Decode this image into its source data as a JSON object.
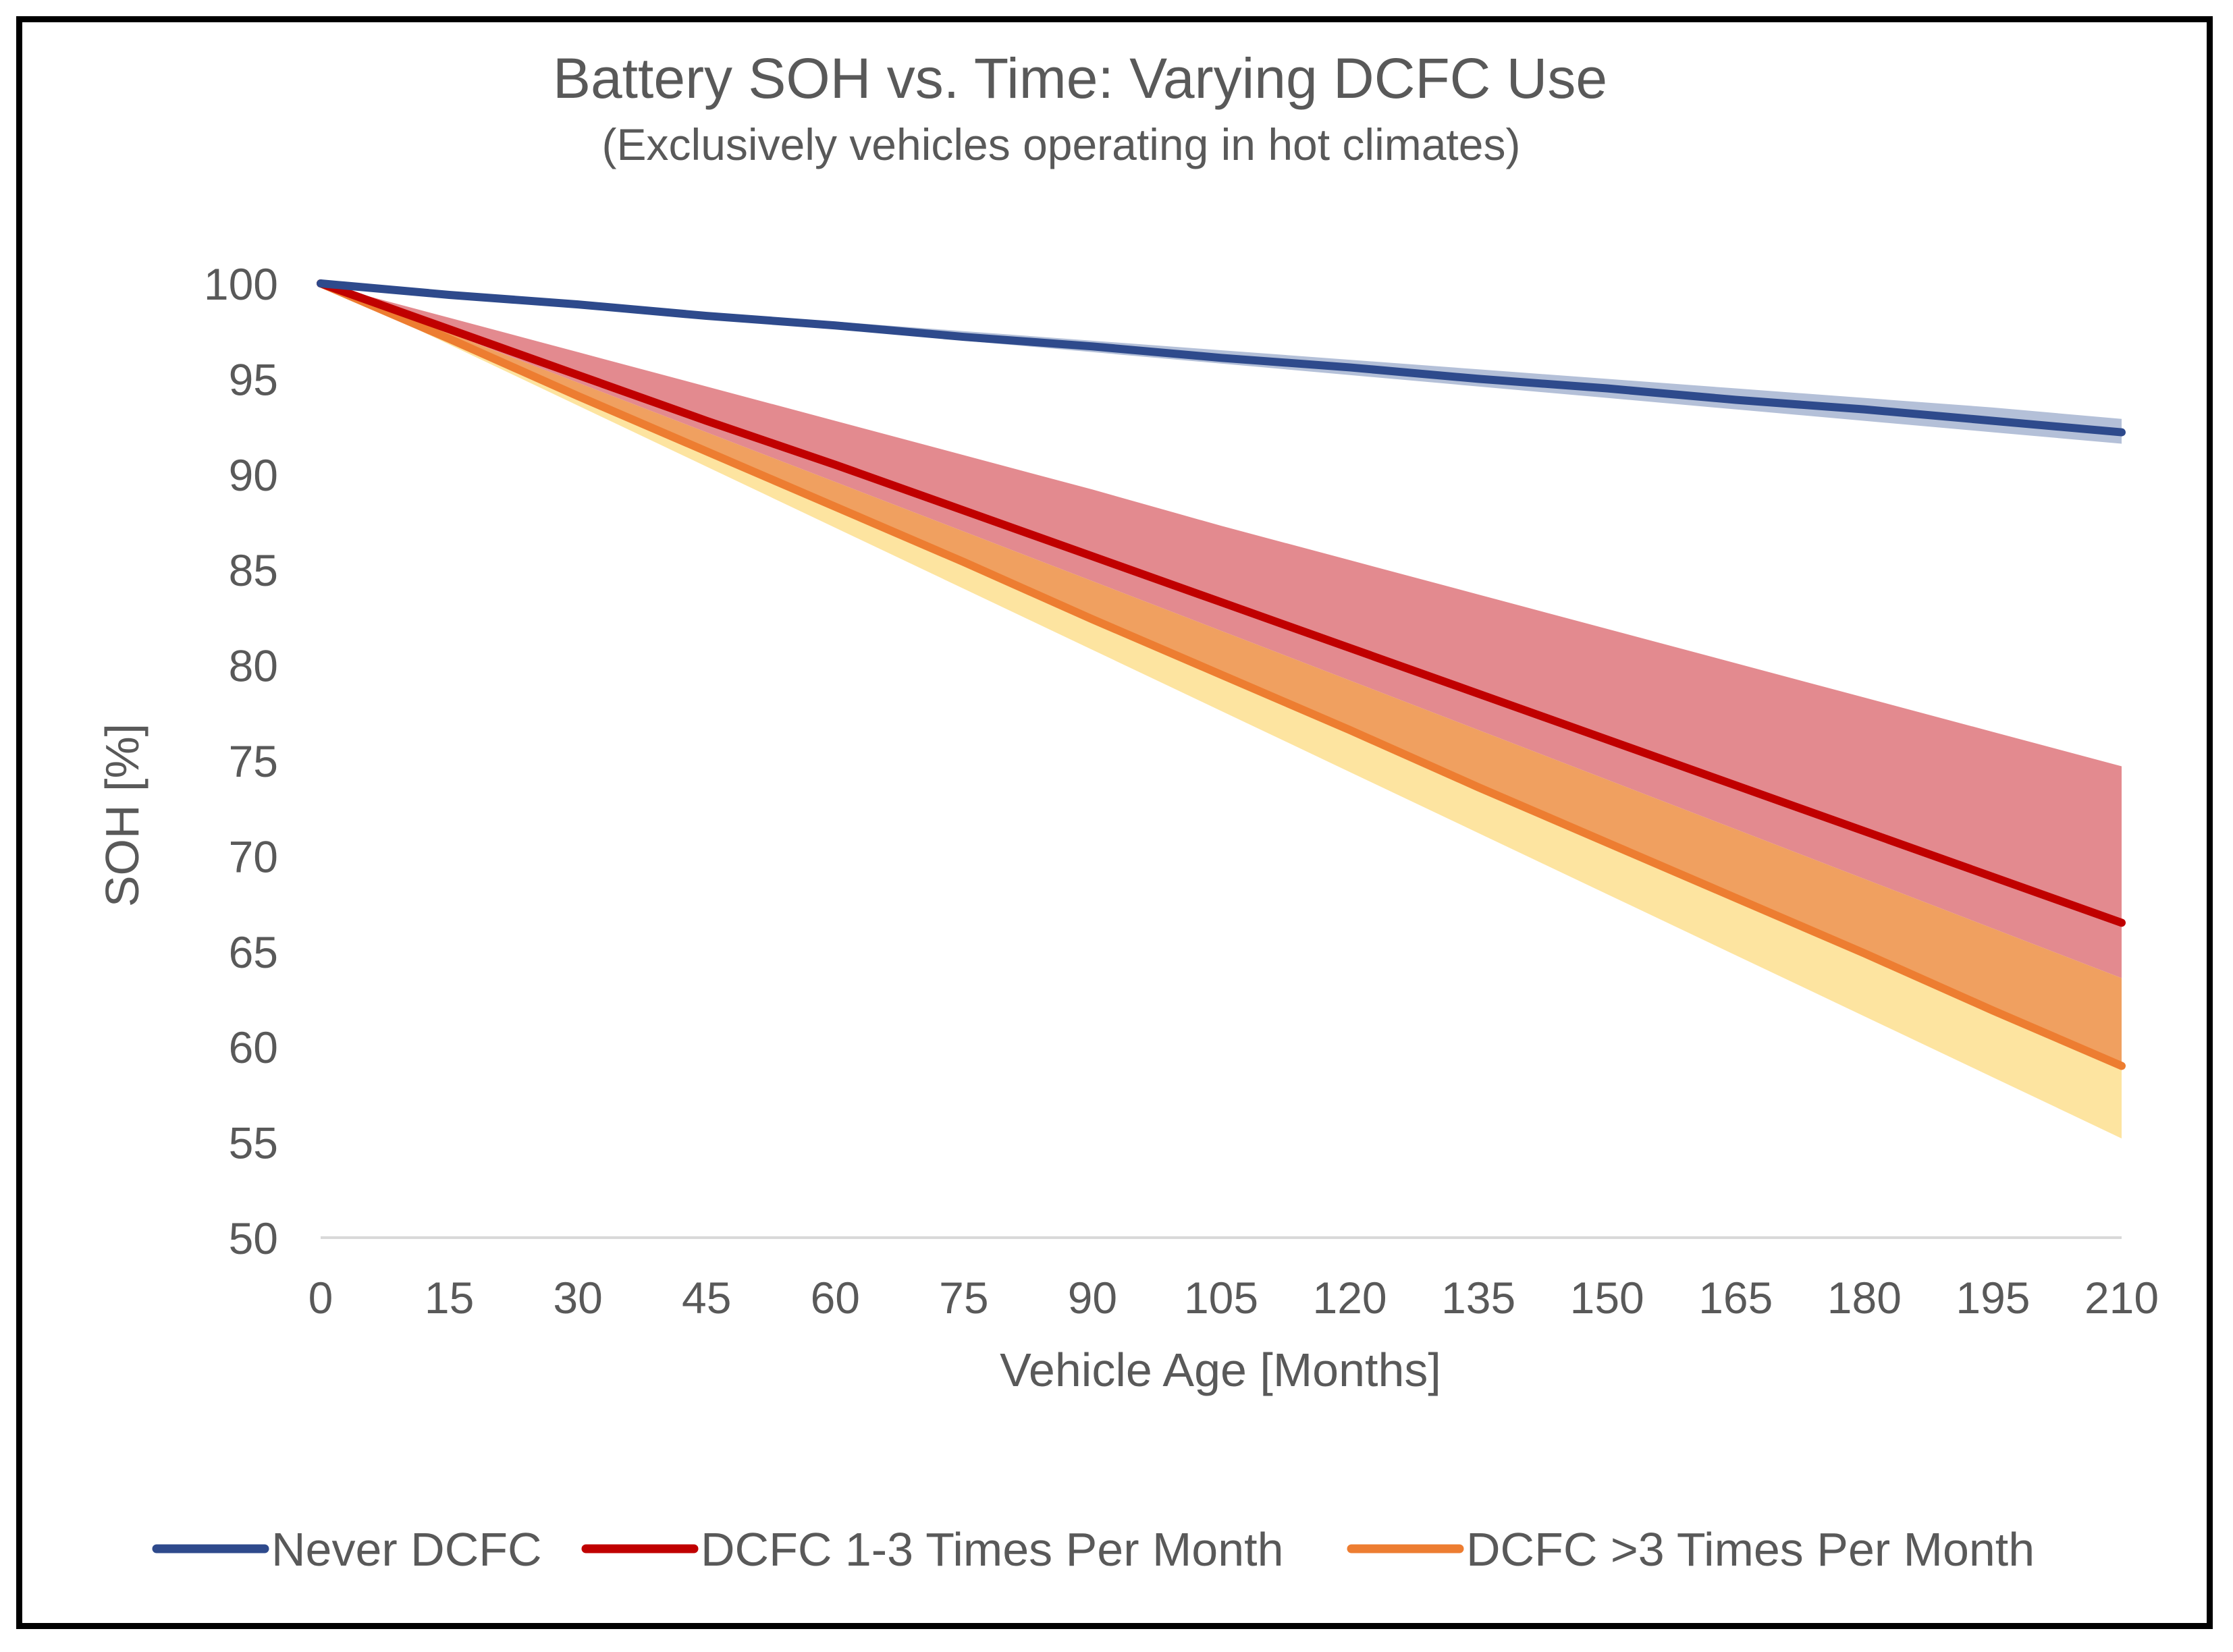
{
  "chart_data": {
    "type": "line",
    "title": "Battery SOH vs. Time: Varying DCFC Use",
    "subtitle": "(Exclusively vehicles operating in hot climates)",
    "xlabel": "Vehicle Age [Months]",
    "ylabel": "SOH [%]",
    "xlim": [
      0,
      210
    ],
    "ylim": [
      50,
      100
    ],
    "xticks": [
      0,
      15,
      30,
      45,
      60,
      75,
      90,
      105,
      120,
      135,
      150,
      165,
      180,
      195,
      210
    ],
    "yticks": [
      50,
      55,
      60,
      65,
      70,
      75,
      80,
      85,
      90,
      95,
      100
    ],
    "legend_position": "bottom",
    "grid": false,
    "x": [
      0,
      15,
      30,
      45,
      60,
      75,
      90,
      105,
      120,
      135,
      150,
      165,
      180,
      195,
      210
    ],
    "series": [
      {
        "name": "Never DCFC",
        "color": "#2e4a8c",
        "band_color": "#b4c0d8",
        "values": [
          100,
          99.4,
          98.9,
          98.3,
          97.8,
          97.2,
          96.7,
          96.1,
          95.6,
          95.0,
          94.5,
          93.9,
          93.4,
          92.8,
          92.2
        ],
        "upper": [
          100,
          99.5,
          99.0,
          98.5,
          98.0,
          97.5,
          97.0,
          96.5,
          96.0,
          95.5,
          95.0,
          94.5,
          94.0,
          93.5,
          92.9
        ],
        "lower": [
          100,
          99.3,
          98.8,
          98.2,
          97.6,
          97.0,
          96.4,
          95.8,
          95.2,
          94.6,
          94.0,
          93.4,
          92.8,
          92.2,
          91.6
        ]
      },
      {
        "name": "DCFC 1-3 Times Per Month",
        "color": "#c00000",
        "band_color": "#e38a8f",
        "values": [
          100,
          97.6,
          95.2,
          92.8,
          90.5,
          88.1,
          85.7,
          83.3,
          80.9,
          78.5,
          76.1,
          73.7,
          71.3,
          68.9,
          66.5
        ],
        "upper": [
          100,
          98.2,
          96.4,
          94.6,
          92.8,
          91.0,
          89.2,
          87.3,
          85.5,
          83.7,
          81.9,
          80.1,
          78.3,
          76.5,
          74.7
        ],
        "lower": [
          100,
          97.4,
          94.8,
          92.2,
          89.6,
          87.0,
          84.4,
          81.8,
          79.2,
          76.6,
          74.0,
          71.4,
          68.8,
          66.2,
          63.6
        ]
      },
      {
        "name": "DCFC >3 Times Per Month",
        "color": "#ed7d31",
        "band_color": "#f0a060",
        "lower_band_color": "#fde4a0",
        "values": [
          100,
          97.1,
          94.1,
          91.2,
          88.3,
          85.4,
          82.4,
          79.5,
          76.6,
          73.6,
          70.7,
          67.8,
          64.9,
          61.9,
          59.0
        ],
        "upper": [
          100,
          97.4,
          94.8,
          92.2,
          89.6,
          87.0,
          84.4,
          81.8,
          79.2,
          76.6,
          74.0,
          71.4,
          68.8,
          66.2,
          63.6
        ],
        "lower": [
          100,
          96.8,
          93.6,
          90.4,
          87.2,
          84.0,
          80.8,
          77.6,
          74.4,
          71.2,
          68.0,
          64.8,
          61.6,
          58.4,
          55.2
        ]
      }
    ]
  }
}
